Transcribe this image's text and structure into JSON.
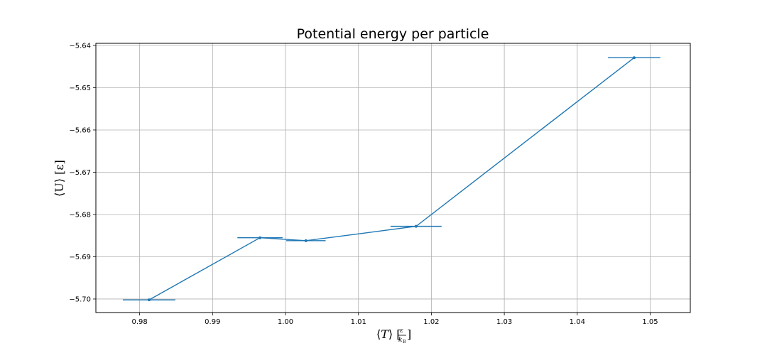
{
  "chart_data": {
    "type": "line",
    "title": "Potential energy per particle",
    "xlabel": {
      "open": "⟨",
      "symbol": "T",
      "close": "⟩",
      "frac_num": "ε",
      "frac_den": "k",
      "frac_den_sub": "B"
    },
    "ylabel": "⟨U⟩ [ε]",
    "xlim": [
      0.974,
      1.0555
    ],
    "ylim": [
      -5.7032,
      -5.6395
    ],
    "xticks": [
      "0.98",
      "0.99",
      "1.00",
      "1.01",
      "1.02",
      "1.03",
      "1.04",
      "1.05"
    ],
    "yticks": [
      "−5.70",
      "−5.69",
      "−5.68",
      "−5.67",
      "−5.66",
      "−5.65",
      "−5.64"
    ],
    "grid": true,
    "color": "#1f77b4",
    "series": [
      {
        "x": [
          0.9813,
          0.9965,
          1.0028,
          1.0179,
          1.0478
        ],
        "y": [
          -5.7002,
          -5.6855,
          -5.6862,
          -5.6828,
          -5.6429
        ],
        "xerr": [
          0.0036,
          0.0031,
          0.0027,
          0.0035,
          0.0036
        ]
      }
    ]
  }
}
